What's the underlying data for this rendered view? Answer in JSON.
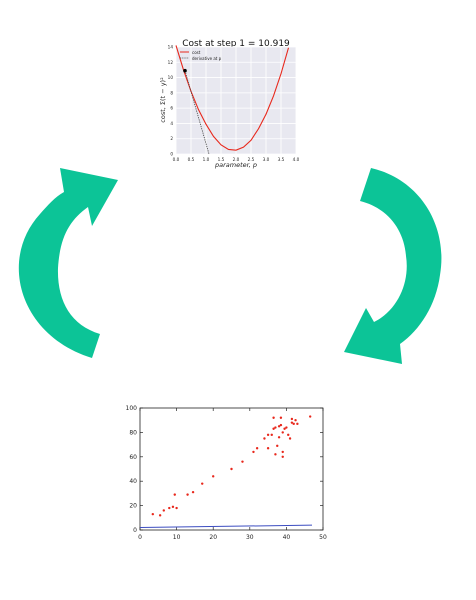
{
  "colors": {
    "arrow": "#0cc497",
    "cost_curve": "#e8281c",
    "derivative": "#444444",
    "scatter_point": "#e8281c",
    "fit_line": "#3b4cc0",
    "top_plot_bg": "#e8e8f0"
  },
  "icons": {
    "left_arrow": "cycle-arrow-up-icon",
    "right_arrow": "cycle-arrow-down-icon"
  },
  "chart_data": [
    {
      "type": "line",
      "title": "Cost at step 1 = 10.919",
      "xlabel": "parameter, p",
      "ylabel": "cost, Σ(t − y)²",
      "xlim": [
        0,
        4
      ],
      "ylim": [
        0,
        14
      ],
      "x_ticks": [
        "0.0",
        "0.5",
        "1.0",
        "1.5",
        "2.0",
        "2.5",
        "3.0",
        "3.5",
        "4.0"
      ],
      "y_ticks": [
        "0",
        "2",
        "4",
        "6",
        "8",
        "10",
        "12",
        "14"
      ],
      "grid": true,
      "legend": {
        "position": "top-left",
        "entries": [
          "cost",
          "derivative at p"
        ]
      },
      "series": [
        {
          "name": "cost",
          "x": [
            0.0,
            0.25,
            0.5,
            0.75,
            1.0,
            1.25,
            1.5,
            1.75,
            2.0,
            2.25,
            2.5,
            2.75,
            3.0,
            3.25,
            3.5,
            3.75
          ],
          "values": [
            14.2,
            11.0,
            8.2,
            5.8,
            3.9,
            2.3,
            1.2,
            0.6,
            0.5,
            0.9,
            1.8,
            3.3,
            5.2,
            7.6,
            10.5,
            13.9
          ]
        },
        {
          "name": "derivative at p",
          "x": [
            0.3,
            1.1
          ],
          "values": [
            10.9,
            0.0
          ]
        }
      ],
      "current_point": {
        "x": 0.3,
        "y": 10.9
      }
    },
    {
      "type": "scatter",
      "xlim": [
        0,
        50
      ],
      "ylim": [
        0,
        100
      ],
      "x_ticks": [
        "0",
        "10",
        "20",
        "30",
        "40",
        "50"
      ],
      "y_ticks": [
        "0",
        "20",
        "40",
        "60",
        "80",
        "100"
      ],
      "grid": false,
      "points": [
        [
          3.5,
          13
        ],
        [
          5.5,
          12
        ],
        [
          6.5,
          16
        ],
        [
          8,
          18
        ],
        [
          9,
          19
        ],
        [
          9.5,
          29
        ],
        [
          10,
          18
        ],
        [
          13,
          29
        ],
        [
          14.5,
          31
        ],
        [
          17,
          38
        ],
        [
          20,
          44
        ],
        [
          25,
          50
        ],
        [
          28,
          56
        ],
        [
          31,
          64
        ],
        [
          32,
          67
        ],
        [
          34,
          75
        ],
        [
          35,
          67
        ],
        [
          35,
          78
        ],
        [
          36,
          78
        ],
        [
          36.5,
          83
        ],
        [
          36.5,
          92
        ],
        [
          37,
          84
        ],
        [
          37,
          62
        ],
        [
          37.5,
          69
        ],
        [
          38,
          76
        ],
        [
          38,
          85
        ],
        [
          38.5,
          86
        ],
        [
          38.5,
          92
        ],
        [
          39,
          64
        ],
        [
          39,
          60
        ],
        [
          39,
          80
        ],
        [
          39.5,
          83
        ],
        [
          40,
          84
        ],
        [
          40.5,
          78
        ],
        [
          41,
          75
        ],
        [
          41.5,
          88
        ],
        [
          41.5,
          91
        ],
        [
          42,
          87
        ],
        [
          42.5,
          90
        ],
        [
          43,
          87
        ],
        [
          46.5,
          93
        ]
      ],
      "line": {
        "x": [
          0,
          47
        ],
        "values": [
          2,
          4
        ]
      }
    }
  ]
}
